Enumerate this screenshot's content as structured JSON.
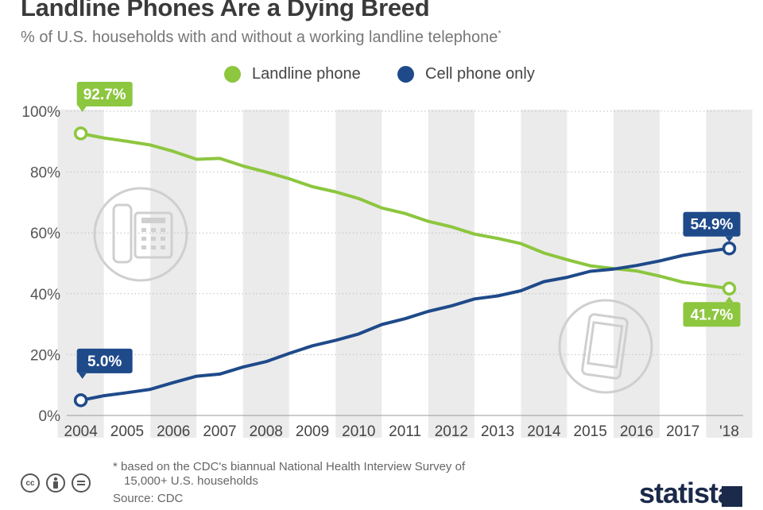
{
  "title": "Landline Phones Are a Dying Breed",
  "subtitle": "% of U.S. households with and without a working landline telephone",
  "subtitle_mark": "*",
  "footnote_line1": "* based on the CDC's biannual National Health Interview Survey of",
  "footnote_line2": "15,000+ U.S. households",
  "source": "Source: CDC",
  "brand": "statista",
  "colors": {
    "landline": "#8dc63f",
    "cell": "#1f4a8a",
    "band": "#ebebeb",
    "icon": "#cfcfcf"
  },
  "icons": [
    "landline-phone-icon",
    "smartphone-icon",
    "creative-commons-icon",
    "attribution-icon",
    "no-derivatives-icon",
    "statista-logo-icon"
  ],
  "chart_data": {
    "type": "line",
    "title": "Landline Phones Are a Dying Breed",
    "subtitle": "% of U.S. households with and without a working landline telephone",
    "x_tick_labels": [
      "2004",
      "2005",
      "2006",
      "2007",
      "2008",
      "2009",
      "2010",
      "2011",
      "2012",
      "2013",
      "2014",
      "2015",
      "2016",
      "2017",
      "'18"
    ],
    "x": [
      2004.0,
      2004.5,
      2005.0,
      2005.5,
      2006.0,
      2006.5,
      2007.0,
      2007.5,
      2008.0,
      2008.5,
      2009.0,
      2009.5,
      2010.0,
      2010.5,
      2011.0,
      2011.5,
      2012.0,
      2012.5,
      2013.0,
      2013.5,
      2014.0,
      2014.5,
      2015.0,
      2015.5,
      2016.0,
      2016.5,
      2017.0,
      2017.5,
      2018.0
    ],
    "series": [
      {
        "name": "Landline phone",
        "color": "#8dc63f",
        "values": [
          92.7,
          91.2,
          90.1,
          88.9,
          86.8,
          84.2,
          84.5,
          82.0,
          80.0,
          77.8,
          75.2,
          73.5,
          71.3,
          68.2,
          66.4,
          63.8,
          62.0,
          59.6,
          58.2,
          56.5,
          53.4,
          51.2,
          49.2,
          48.3,
          47.5,
          45.8,
          43.8,
          42.8,
          41.7
        ],
        "end_labels": {
          "first": "92.7%",
          "last": "41.7%"
        }
      },
      {
        "name": "Cell phone only",
        "color": "#1f4a8a",
        "values": [
          5.0,
          6.5,
          7.5,
          8.6,
          10.8,
          12.9,
          13.6,
          15.9,
          17.7,
          20.4,
          22.9,
          24.7,
          26.8,
          29.9,
          31.8,
          34.2,
          36.0,
          38.3,
          39.3,
          41.0,
          44.0,
          45.4,
          47.4,
          48.1,
          49.3,
          50.8,
          52.6,
          53.9,
          54.9
        ],
        "end_labels": {
          "first": "5.0%",
          "last": "54.9%"
        }
      }
    ],
    "y_tick_labels": [
      "0%",
      "20%",
      "40%",
      "60%",
      "80%",
      "100%"
    ],
    "y_ticks": [
      0,
      20,
      40,
      60,
      80,
      100
    ],
    "ylim": [
      0,
      100
    ],
    "xlim": [
      2003.8,
      2018.3
    ],
    "grid": "horizontal dotted",
    "legend_position": "top-center"
  }
}
